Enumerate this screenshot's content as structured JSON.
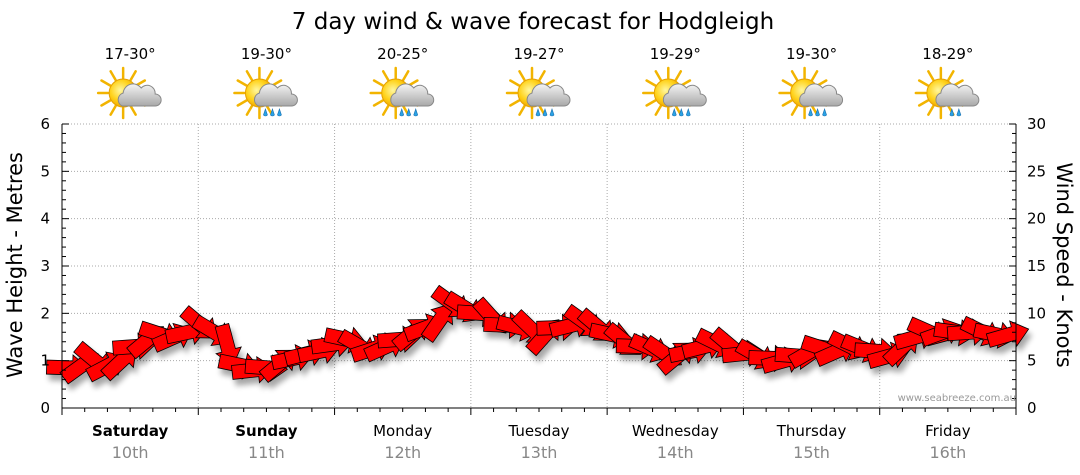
{
  "chart_data": {
    "type": "line",
    "title": "7 day wind & wave forecast for Hodgleigh",
    "ylabel_left": "Wave Height - Metres",
    "ylabel_right": "Wind Speed - Knots",
    "ylim_left": [
      0,
      6
    ],
    "ylim_right": [
      0,
      30
    ],
    "yticks_left": [
      "0",
      "1",
      "2",
      "3",
      "4",
      "5",
      "6"
    ],
    "yticks_right": [
      "0",
      "5",
      "10",
      "15",
      "20",
      "25",
      "30"
    ],
    "grid": true,
    "credit": "www.seabreeze.com.au",
    "days": [
      {
        "name": "Saturday",
        "date": "10th",
        "bold": true,
        "temp": "17-30°",
        "icon": "partly-cloudy-icon"
      },
      {
        "name": "Sunday",
        "date": "11th",
        "bold": true,
        "temp": "19-30°",
        "icon": "showers-icon"
      },
      {
        "name": "Monday",
        "date": "12th",
        "bold": false,
        "temp": "20-25°",
        "icon": "showers-icon"
      },
      {
        "name": "Tuesday",
        "date": "13th",
        "bold": false,
        "temp": "19-27°",
        "icon": "showers-icon"
      },
      {
        "name": "Wednesday",
        "date": "14th",
        "bold": false,
        "temp": "19-29°",
        "icon": "showers-icon"
      },
      {
        "name": "Thursday",
        "date": "15th",
        "bold": false,
        "temp": "19-30°",
        "icon": "showers-icon"
      },
      {
        "name": "Friday",
        "date": "16th",
        "bold": false,
        "temp": "18-29°",
        "icon": "light-rain-icon"
      }
    ],
    "series": [
      {
        "name": "Wave Height",
        "axis": "left",
        "color": "#ff0000",
        "values": [
          0.85,
          0.9,
          1.0,
          0.9,
          1.0,
          1.3,
          1.45,
          1.55,
          1.5,
          1.6,
          1.75,
          1.6,
          1.3,
          0.9,
          0.8,
          0.85,
          0.95,
          1.05,
          1.15,
          1.2,
          1.35,
          1.45,
          1.3,
          1.25,
          1.3,
          1.45,
          1.6,
          1.7,
          1.85,
          2.2,
          2.1,
          2.0,
          1.9,
          1.75,
          1.7,
          1.65,
          1.55,
          1.7,
          1.75,
          1.8,
          1.7,
          1.55,
          1.4,
          1.3,
          1.25,
          1.15,
          1.1,
          1.2,
          1.3,
          1.35,
          1.3,
          1.15,
          1.1,
          1.05,
          1.0,
          1.1,
          1.2,
          1.25,
          1.2,
          1.3,
          1.25,
          1.2,
          1.1,
          1.3,
          1.5,
          1.6,
          1.6,
          1.6,
          1.6,
          1.6,
          1.55,
          1.55
        ]
      }
    ]
  }
}
